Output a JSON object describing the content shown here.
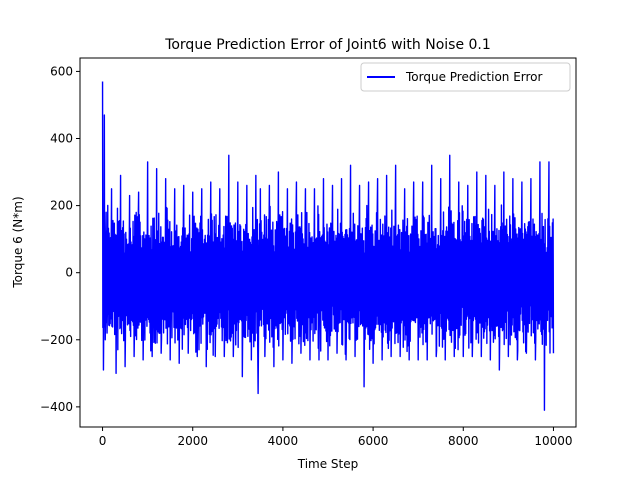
{
  "chart_data": {
    "type": "line",
    "title": "Torque Prediction Error of Joint6 with Noise 0.1",
    "xlabel": "Time Step",
    "ylabel": "Torque 6 (N*m)",
    "xlim": [
      -500,
      10500
    ],
    "ylim": [
      -460,
      640
    ],
    "xticks": [
      0,
      2000,
      4000,
      6000,
      8000,
      10000
    ],
    "xtick_labels": [
      "0",
      "2000",
      "4000",
      "6000",
      "8000",
      "10000"
    ],
    "yticks": [
      -400,
      -200,
      0,
      200,
      400,
      600
    ],
    "ytick_labels": [
      "−400",
      "−200",
      "0",
      "200",
      "400",
      "600"
    ],
    "grid": false,
    "legend_position": "top-right",
    "series": [
      {
        "name": "Torque Prediction Error",
        "color": "#0000ff",
        "x": [
          0,
          20,
          40,
          60,
          80,
          100,
          200,
          300,
          400,
          500,
          600,
          700,
          800,
          900,
          1000,
          1100,
          1200,
          1300,
          1400,
          1500,
          1600,
          1700,
          1800,
          1900,
          2000,
          2100,
          2200,
          2300,
          2400,
          2500,
          2600,
          2700,
          2800,
          2900,
          3000,
          3100,
          3200,
          3300,
          3400,
          3450,
          3500,
          3600,
          3700,
          3800,
          3900,
          4000,
          4100,
          4200,
          4300,
          4400,
          4500,
          4600,
          4700,
          4800,
          4900,
          5000,
          5100,
          5200,
          5300,
          5400,
          5500,
          5600,
          5700,
          5800,
          5900,
          6000,
          6100,
          6200,
          6300,
          6400,
          6500,
          6600,
          6700,
          6800,
          6900,
          7000,
          7100,
          7200,
          7300,
          7400,
          7500,
          7600,
          7700,
          7800,
          7900,
          8000,
          8100,
          8200,
          8300,
          8400,
          8500,
          8600,
          8700,
          8800,
          8900,
          9000,
          9100,
          9200,
          9300,
          9400,
          9500,
          9600,
          9700,
          9800,
          9900,
          10000
        ],
        "y": [
          570,
          -290,
          470,
          -200,
          180,
          -180,
          250,
          -300,
          290,
          -280,
          230,
          -250,
          240,
          -260,
          330,
          -250,
          310,
          -240,
          280,
          -260,
          250,
          -270,
          260,
          -240,
          240,
          -250,
          250,
          -280,
          270,
          -250,
          250,
          -250,
          350,
          -250,
          270,
          -310,
          260,
          -260,
          290,
          -360,
          250,
          -250,
          260,
          -280,
          300,
          -260,
          250,
          -270,
          270,
          -240,
          250,
          -260,
          250,
          -260,
          280,
          -260,
          260,
          -240,
          280,
          -260,
          320,
          -250,
          260,
          -340,
          270,
          -270,
          280,
          -260,
          290,
          -250,
          320,
          -250,
          250,
          -260,
          270,
          -260,
          270,
          -260,
          320,
          -250,
          280,
          -260,
          350,
          -250,
          270,
          -250,
          260,
          -250,
          300,
          -250,
          290,
          -260,
          260,
          -290,
          300,
          -250,
          280,
          -260,
          270,
          -240,
          280,
          -260,
          330,
          -410,
          330,
          -240
        ]
      }
    ]
  }
}
